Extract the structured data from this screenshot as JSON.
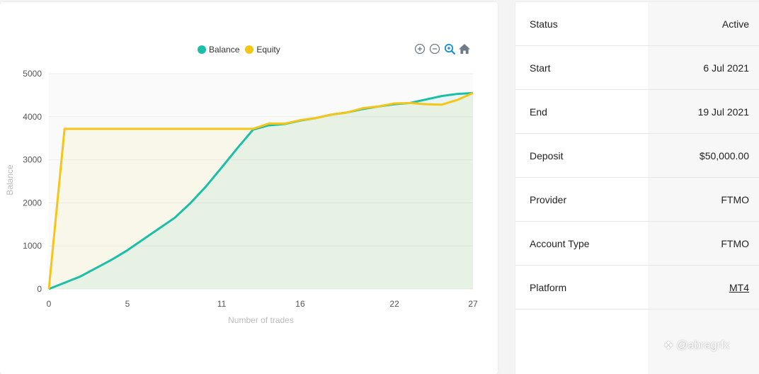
{
  "chart_card": {
    "legend": [
      {
        "name": "Balance",
        "color": "#1bbfa8"
      },
      {
        "name": "Equity",
        "color": "#f5c518"
      }
    ],
    "toolbar": [
      "zoom-in-icon",
      "zoom-out-icon",
      "zoom-select-icon",
      "home-icon"
    ],
    "colors": {
      "balance": "#1bbfa8",
      "equity": "#f5c518",
      "grid": "#eeeeee",
      "axis_text": "#555555"
    }
  },
  "chart_data": {
    "type": "area",
    "xlabel": "Number of trades",
    "ylabel": "Balance",
    "xlim": [
      0,
      27
    ],
    "ylim": [
      0,
      5000
    ],
    "x_ticks": [
      0,
      5,
      11,
      16,
      22,
      27
    ],
    "y_ticks": [
      0,
      1000,
      2000,
      3000,
      4000,
      5000
    ],
    "legend_position": "top-center",
    "series": [
      {
        "name": "Balance",
        "x": [
          0,
          2,
          4,
          5,
          7,
          8,
          9,
          10,
          11,
          12,
          13,
          14,
          15,
          16,
          17,
          18,
          19,
          20,
          21,
          22,
          23,
          24,
          25,
          26,
          27
        ],
        "y": [
          0,
          290,
          680,
          900,
          1400,
          1650,
          1990,
          2380,
          2820,
          3270,
          3700,
          3800,
          3830,
          3910,
          3970,
          4050,
          4100,
          4180,
          4240,
          4290,
          4320,
          4400,
          4480,
          4530,
          4550
        ]
      },
      {
        "name": "Equity",
        "x": [
          0,
          1,
          13,
          14,
          15,
          16,
          17,
          18,
          19,
          20,
          21,
          22,
          23,
          24,
          25,
          26,
          27
        ],
        "y": [
          0,
          3720,
          3720,
          3840,
          3840,
          3920,
          3970,
          4050,
          4100,
          4200,
          4240,
          4310,
          4320,
          4290,
          4280,
          4390,
          4550
        ]
      }
    ]
  },
  "info": {
    "rows": [
      {
        "label": "Status",
        "value": "Active"
      },
      {
        "label": "Start",
        "value": "6 Jul 2021"
      },
      {
        "label": "End",
        "value": "19 Jul 2021"
      },
      {
        "label": "Deposit",
        "value": "$50,000.00"
      },
      {
        "label": "Provider",
        "value": "FTMO"
      },
      {
        "label": "Account Type",
        "value": "FTMO"
      },
      {
        "label": "Platform",
        "value": "MT4"
      }
    ]
  },
  "watermark": "@abragrfx"
}
